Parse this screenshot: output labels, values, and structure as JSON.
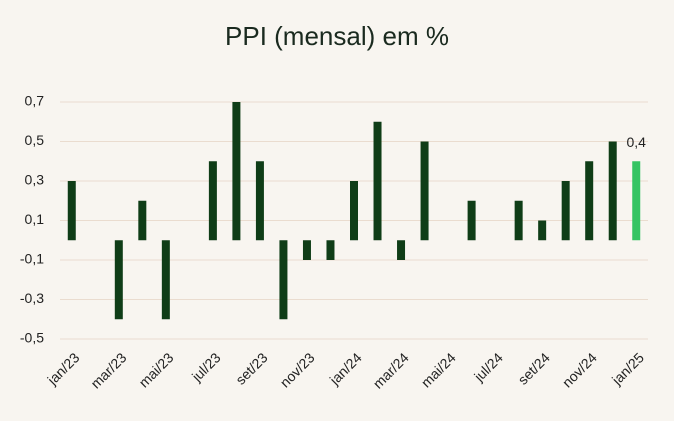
{
  "chart_data": {
    "type": "bar",
    "title": "PPI (mensal) em %",
    "categories": [
      "jan/23",
      null,
      "mar/23",
      null,
      "mai/23",
      null,
      "jul/23",
      null,
      "set/23",
      null,
      "nov/23",
      null,
      "jan/24",
      null,
      "mar/24",
      null,
      "mai/24",
      null,
      "jul/24",
      null,
      "set/24",
      null,
      "nov/24",
      null,
      "jan/25"
    ],
    "values": [
      0.3,
      0,
      -0.4,
      0.2,
      -0.4,
      0,
      0.4,
      0.7,
      0.4,
      -0.4,
      -0.1,
      -0.1,
      0.3,
      0.6,
      -0.1,
      0.5,
      0,
      0.2,
      0,
      0.2,
      0.1,
      0.3,
      0.4,
      0.5,
      0.4
    ],
    "value_labels": [
      null,
      null,
      null,
      null,
      null,
      null,
      null,
      null,
      null,
      null,
      null,
      null,
      null,
      null,
      null,
      null,
      null,
      null,
      null,
      null,
      null,
      null,
      null,
      null,
      "0,4"
    ],
    "colors": [
      "#0f3d17",
      "#0f3d17",
      "#0f3d17",
      "#0f3d17",
      "#0f3d17",
      "#0f3d17",
      "#0f3d17",
      "#0f3d17",
      "#0f3d17",
      "#0f3d17",
      "#0f3d17",
      "#0f3d17",
      "#0f3d17",
      "#0f3d17",
      "#0f3d17",
      "#0f3d17",
      "#0f3d17",
      "#0f3d17",
      "#0f3d17",
      "#0f3d17",
      "#0f3d17",
      "#0f3d17",
      "#0f3d17",
      "#0f3d17",
      "#35c463"
    ],
    "ylim": [
      -0.5,
      0.7
    ],
    "yticks": [
      {
        "value": -0.5,
        "label": "-0,5"
      },
      {
        "value": -0.3,
        "label": "-0,3"
      },
      {
        "value": -0.1,
        "label": "-0,1"
      },
      {
        "value": 0.1,
        "label": "0,1"
      },
      {
        "value": 0.3,
        "label": "0,3"
      },
      {
        "value": 0.5,
        "label": "0,5"
      },
      {
        "value": 0.7,
        "label": "0,7"
      }
    ],
    "grid": true
  }
}
